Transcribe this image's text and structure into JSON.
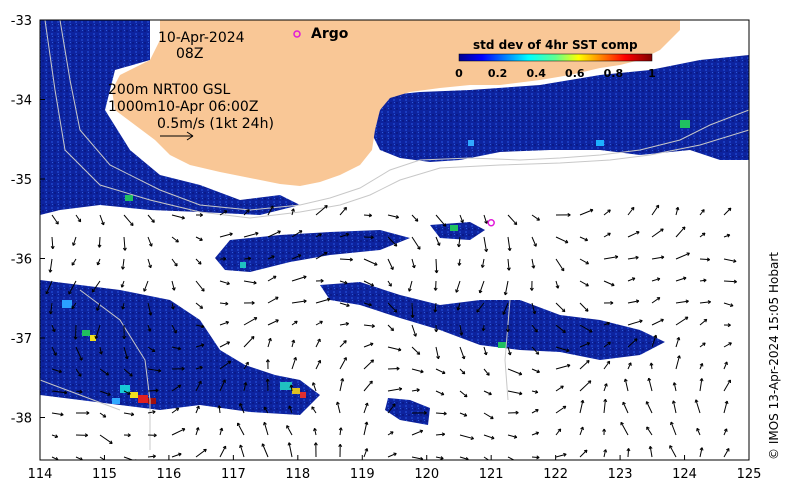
{
  "map": {
    "date": "10-Apr-2024",
    "time": "08Z",
    "current_info": {
      "line1": "200m  NRT00 GSL",
      "line2": "1000m10-Apr 06:00Z",
      "scale": "0.5m/s (1kt 24h)"
    },
    "argo_label": "Argo",
    "colorbar": {
      "title": "std dev of 4hr SST comp",
      "ticks": [
        "0",
        "0.2",
        "0.4",
        "0.6",
        "0.8",
        "1"
      ],
      "range": [
        0,
        1
      ]
    },
    "x_ticks": [
      "114",
      "115",
      "116",
      "117",
      "118",
      "119",
      "120",
      "121",
      "122",
      "123",
      "124",
      "125"
    ],
    "y_ticks": [
      "-33",
      "-34",
      "-35",
      "-36",
      "-37",
      "-38"
    ],
    "lon_range": [
      114,
      125
    ],
    "lat_range": [
      -38.5,
      -33
    ],
    "argo_floats": [
      {
        "lon": 118.0,
        "lat": -33.2
      },
      {
        "lon": 121.0,
        "lat": -35.55
      }
    ],
    "credit": "© IMOS 13-Apr-2024 15:05 Hobart",
    "colors": {
      "land": "#f9c796",
      "argo": "#e01ad8",
      "ocean_low": "#0a1f9c",
      "cloud": "#ffffff"
    }
  }
}
